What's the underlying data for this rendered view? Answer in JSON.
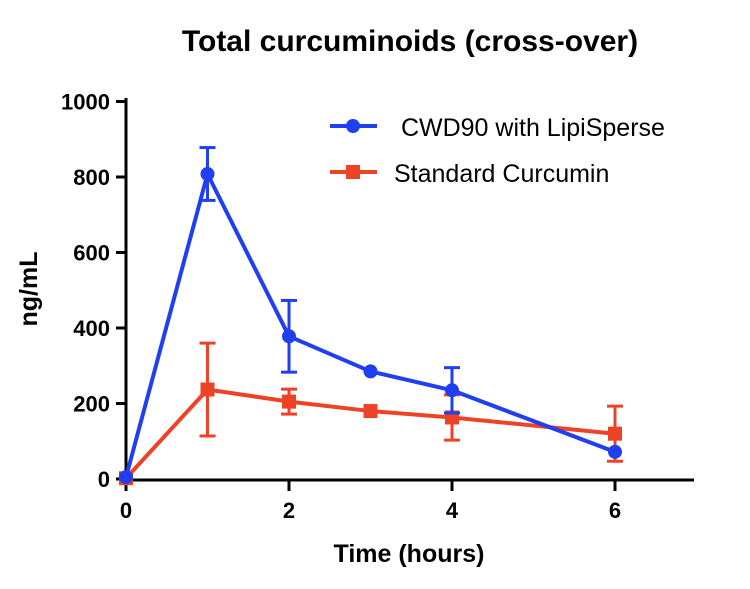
{
  "chart_data": {
    "type": "line",
    "title": "Total curcuminoids (cross-over)",
    "xlabel": "Time (hours)",
    "ylabel": "ng/mL",
    "xlim": [
      0,
      7
    ],
    "ylim": [
      0,
      1000
    ],
    "xticks": [
      0,
      2,
      4,
      6
    ],
    "yticks": [
      0,
      200,
      400,
      600,
      800,
      1000
    ],
    "grid": false,
    "legend": "top-right",
    "series": [
      {
        "name": " CWD90 with LipiSperse",
        "color": "#1f3ff0",
        "marker": "circle",
        "x": [
          0,
          1,
          2,
          3,
          4,
          6
        ],
        "y": [
          5,
          808,
          378,
          285,
          235,
          72
        ],
        "err": [
          0,
          70,
          95,
          0,
          60,
          0
        ]
      },
      {
        "name": "Standard Curcumin",
        "color": "#ee4227",
        "marker": "square",
        "x": [
          0,
          1,
          2,
          3,
          4,
          6
        ],
        "y": [
          2,
          237,
          205,
          180,
          163,
          120
        ],
        "err": [
          0,
          123,
          33,
          0,
          60,
          73
        ]
      }
    ]
  }
}
